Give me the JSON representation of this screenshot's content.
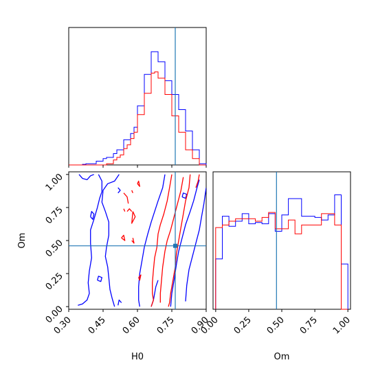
{
  "chart_data": [
    {
      "type": "histogram",
      "panel": "H0 marginal (top-left)",
      "xlim": [
        0.3,
        0.9
      ],
      "ylim": [
        0,
        1
      ],
      "truth_line": 0.765,
      "truth_color": "#1f77b4",
      "x_edges": [
        0.3,
        0.315,
        0.33,
        0.345,
        0.36,
        0.375,
        0.39,
        0.405,
        0.42,
        0.435,
        0.45,
        0.465,
        0.48,
        0.495,
        0.51,
        0.525,
        0.54,
        0.555,
        0.57,
        0.585,
        0.6,
        0.615,
        0.63,
        0.645,
        0.66,
        0.675,
        0.69,
        0.705,
        0.72,
        0.735,
        0.75,
        0.765,
        0.78,
        0.795,
        0.81,
        0.825,
        0.84,
        0.855,
        0.87,
        0.885,
        0.9
      ],
      "series": [
        {
          "color": "#0000ff",
          "values": [
            0,
            0,
            0,
            0,
            0.005,
            0.01,
            0.01,
            0.01,
            0.03,
            0.03,
            0.05,
            0.06,
            0.06,
            0.09,
            0.12,
            0.12,
            0.2,
            0.2,
            0.25,
            0.3,
            0.47,
            0.47,
            0.72,
            0.72,
            0.9,
            0.9,
            0.82,
            0.82,
            0.67,
            0.67,
            0.56,
            0.56,
            0.44,
            0.44,
            0.27,
            0.27,
            0.12,
            0.12,
            0.01,
            0.01
          ]
        },
        {
          "color": "#ff0000",
          "values": [
            0,
            0,
            0,
            0,
            0,
            0,
            0,
            0,
            0,
            0,
            0,
            0.01,
            0.01,
            0.04,
            0.06,
            0.08,
            0.13,
            0.16,
            0.21,
            0.26,
            0.4,
            0.4,
            0.57,
            0.57,
            0.73,
            0.74,
            0.69,
            0.69,
            0.56,
            0.56,
            0.39,
            0.39,
            0.26,
            0.26,
            0.12,
            0.12,
            0.05,
            0.05,
            0.0,
            0.0
          ]
        }
      ]
    },
    {
      "type": "contour",
      "panel": "H0 vs Om (bottom-left)",
      "xlabel": "H0",
      "ylabel": "Om",
      "xlim": [
        0.3,
        0.9
      ],
      "ylim": [
        -0.02,
        1.02
      ],
      "xticks": [
        "0.30",
        "0.45",
        "0.60",
        "0.75",
        "0.90"
      ],
      "yticks": [
        "0.00",
        "0.25",
        "0.50",
        "0.75",
        "1.00"
      ],
      "truth_point": [
        0.765,
        0.46
      ],
      "truth_color": "#1f77b4",
      "series": [
        {
          "color": "#0000ff",
          "contours": [
            [
              [
                0.345,
                1.0
              ],
              [
                0.36,
                0.97
              ],
              [
                0.38,
                0.96
              ],
              [
                0.395,
                0.99
              ],
              [
                0.41,
                1.0
              ]
            ],
            [
              [
                0.43,
                1.0
              ],
              [
                0.445,
                0.95
              ],
              [
                0.445,
                0.87
              ],
              [
                0.435,
                0.82
              ],
              [
                0.425,
                0.75
              ],
              [
                0.41,
                0.66
              ],
              [
                0.395,
                0.58
              ],
              [
                0.395,
                0.48
              ],
              [
                0.4,
                0.37
              ],
              [
                0.39,
                0.27
              ],
              [
                0.385,
                0.18
              ],
              [
                0.39,
                0.1
              ],
              [
                0.38,
                0.05
              ],
              [
                0.36,
                0.02
              ],
              [
                0.34,
                0.01
              ]
            ],
            [
              [
                0.52,
                1.0
              ],
              [
                0.5,
                0.95
              ],
              [
                0.47,
                0.93
              ],
              [
                0.45,
                0.88
              ],
              [
                0.445,
                0.79
              ],
              [
                0.46,
                0.72
              ],
              [
                0.475,
                0.64
              ],
              [
                0.475,
                0.54
              ],
              [
                0.465,
                0.45
              ],
              [
                0.46,
                0.38
              ],
              [
                0.47,
                0.3
              ],
              [
                0.475,
                0.22
              ],
              [
                0.48,
                0.13
              ],
              [
                0.49,
                0.06
              ],
              [
                0.5,
                0.0
              ]
            ],
            [
              [
                0.72,
                1.0
              ],
              [
                0.71,
                0.9
              ],
              [
                0.69,
                0.8
              ],
              [
                0.675,
                0.72
              ],
              [
                0.66,
                0.64
              ],
              [
                0.645,
                0.55
              ],
              [
                0.63,
                0.45
              ],
              [
                0.62,
                0.35
              ],
              [
                0.61,
                0.25
              ],
              [
                0.605,
                0.15
              ],
              [
                0.605,
                0.05
              ],
              [
                0.61,
                0.0
              ]
            ],
            [
              [
                0.87,
                0.96
              ],
              [
                0.86,
                0.9
              ],
              [
                0.845,
                0.8
              ],
              [
                0.83,
                0.72
              ],
              [
                0.81,
                0.62
              ],
              [
                0.795,
                0.52
              ],
              [
                0.78,
                0.42
              ],
              [
                0.77,
                0.32
              ],
              [
                0.76,
                0.2
              ],
              [
                0.75,
                0.1
              ],
              [
                0.745,
                0.0
              ]
            ],
            [
              [
                0.9,
                0.9
              ],
              [
                0.89,
                0.78
              ],
              [
                0.88,
                0.68
              ],
              [
                0.87,
                0.58
              ],
              [
                0.855,
                0.48
              ],
              [
                0.84,
                0.38
              ],
              [
                0.825,
                0.28
              ],
              [
                0.815,
                0.16
              ],
              [
                0.81,
                0.04
              ]
            ],
            [
              [
                0.69,
                0.2
              ],
              [
                0.68,
                0.15
              ],
              [
                0.67,
                0.05
              ],
              [
                0.66,
                0.0
              ]
            ],
            [
              [
                0.395,
                0.68
              ],
              [
                0.405,
                0.66
              ],
              [
                0.41,
                0.7
              ],
              [
                0.4,
                0.72
              ],
              [
                0.395,
                0.68
              ]
            ],
            [
              [
                0.425,
                0.2
              ],
              [
                0.44,
                0.19
              ],
              [
                0.445,
                0.22
              ],
              [
                0.43,
                0.23
              ],
              [
                0.425,
                0.2
              ]
            ],
            [
              [
                0.515,
                0.01
              ],
              [
                0.52,
                0.05
              ],
              [
                0.53,
                0.03
              ]
            ],
            [
              [
                0.795,
                0.83
              ],
              [
                0.81,
                0.82
              ],
              [
                0.815,
                0.85
              ],
              [
                0.8,
                0.86
              ],
              [
                0.795,
                0.83
              ]
            ],
            [
              [
                0.515,
                0.86
              ],
              [
                0.525,
                0.88
              ],
              [
                0.515,
                0.9
              ]
            ]
          ]
        },
        {
          "color": "#ff0000",
          "contours": [
            [
              [
                0.54,
                0.86
              ],
              [
                0.555,
                0.83
              ],
              [
                0.56,
                0.78
              ]
            ],
            [
              [
                0.555,
                0.72
              ],
              [
                0.565,
                0.74
              ],
              [
                0.575,
                0.72
              ]
            ],
            [
              [
                0.58,
                0.72
              ],
              [
                0.59,
                0.68
              ],
              [
                0.575,
                0.63
              ],
              [
                0.58,
                0.72
              ]
            ],
            [
              [
                0.53,
                0.52
              ],
              [
                0.545,
                0.5
              ],
              [
                0.54,
                0.54
              ],
              [
                0.53,
                0.52
              ]
            ],
            [
              [
                0.575,
                0.5
              ],
              [
                0.585,
                0.48
              ],
              [
                0.58,
                0.52
              ]
            ],
            [
              [
                0.6,
                0.93
              ],
              [
                0.61,
                0.91
              ],
              [
                0.605,
                0.95
              ],
              [
                0.6,
                0.93
              ]
            ],
            [
              [
                0.605,
                0.22
              ],
              [
                0.61,
                0.2
              ],
              [
                0.615,
                0.24
              ],
              [
                0.605,
                0.22
              ]
            ],
            [
              [
                0.54,
                0.74
              ],
              [
                0.545,
                0.72
              ]
            ],
            [
              [
                0.575,
                0.88
              ],
              [
                0.58,
                0.86
              ]
            ],
            [
              [
                0.75,
                1.0
              ],
              [
                0.74,
                0.9
              ],
              [
                0.73,
                0.8
              ],
              [
                0.715,
                0.7
              ],
              [
                0.7,
                0.62
              ],
              [
                0.69,
                0.55
              ],
              [
                0.685,
                0.45
              ],
              [
                0.675,
                0.37
              ],
              [
                0.67,
                0.28
              ],
              [
                0.665,
                0.18
              ],
              [
                0.665,
                0.1
              ],
              [
                0.67,
                0.05
              ],
              [
                0.66,
                0.0
              ]
            ],
            [
              [
                0.83,
                1.0
              ],
              [
                0.825,
                0.9
              ],
              [
                0.81,
                0.8
              ],
              [
                0.8,
                0.7
              ],
              [
                0.79,
                0.6
              ],
              [
                0.78,
                0.5
              ],
              [
                0.77,
                0.4
              ],
              [
                0.765,
                0.3
              ],
              [
                0.755,
                0.2
              ],
              [
                0.745,
                0.1
              ],
              [
                0.74,
                0.03
              ],
              [
                0.735,
                0.0
              ]
            ],
            [
              [
                0.87,
                1.0
              ],
              [
                0.865,
                0.95
              ],
              [
                0.855,
                0.9
              ]
            ],
            [
              [
                0.8,
                0.98
              ],
              [
                0.79,
                0.88
              ],
              [
                0.775,
                0.78
              ],
              [
                0.76,
                0.68
              ],
              [
                0.745,
                0.58
              ],
              [
                0.73,
                0.5
              ],
              [
                0.72,
                0.42
              ],
              [
                0.71,
                0.3
              ],
              [
                0.705,
                0.2
              ],
              [
                0.7,
                0.1
              ],
              [
                0.7,
                0.03
              ]
            ]
          ]
        }
      ]
    },
    {
      "type": "histogram",
      "panel": "Om marginal (bottom-right)",
      "xlabel": "Om",
      "xlim": [
        -0.02,
        1.02
      ],
      "ylim": [
        0,
        1
      ],
      "xticks": [
        "0.00",
        "0.25",
        "0.50",
        "0.75",
        "1.00"
      ],
      "truth_line": 0.46,
      "truth_color": "#1f77b4",
      "x_edges": [
        0.0,
        0.05,
        0.1,
        0.15,
        0.2,
        0.25,
        0.3,
        0.35,
        0.4,
        0.45,
        0.5,
        0.55,
        0.6,
        0.65,
        0.7,
        0.75,
        0.8,
        0.85,
        0.9,
        0.95,
        1.0
      ],
      "series": [
        {
          "color": "#0000ff",
          "values": [
            0.4,
            0.74,
            0.66,
            0.7,
            0.76,
            0.68,
            0.69,
            0.68,
            0.76,
            0.62,
            0.75,
            0.88,
            0.88,
            0.74,
            0.74,
            0.73,
            0.71,
            0.75,
            0.91,
            0.36
          ]
        },
        {
          "color": "#ff0000",
          "values": [
            0.65,
            0.67,
            0.7,
            0.72,
            0.72,
            0.72,
            0.7,
            0.73,
            0.77,
            0.64,
            0.64,
            0.71,
            0.6,
            0.67,
            0.67,
            0.67,
            0.76,
            0.76,
            0.67,
            0.0
          ]
        }
      ]
    }
  ]
}
